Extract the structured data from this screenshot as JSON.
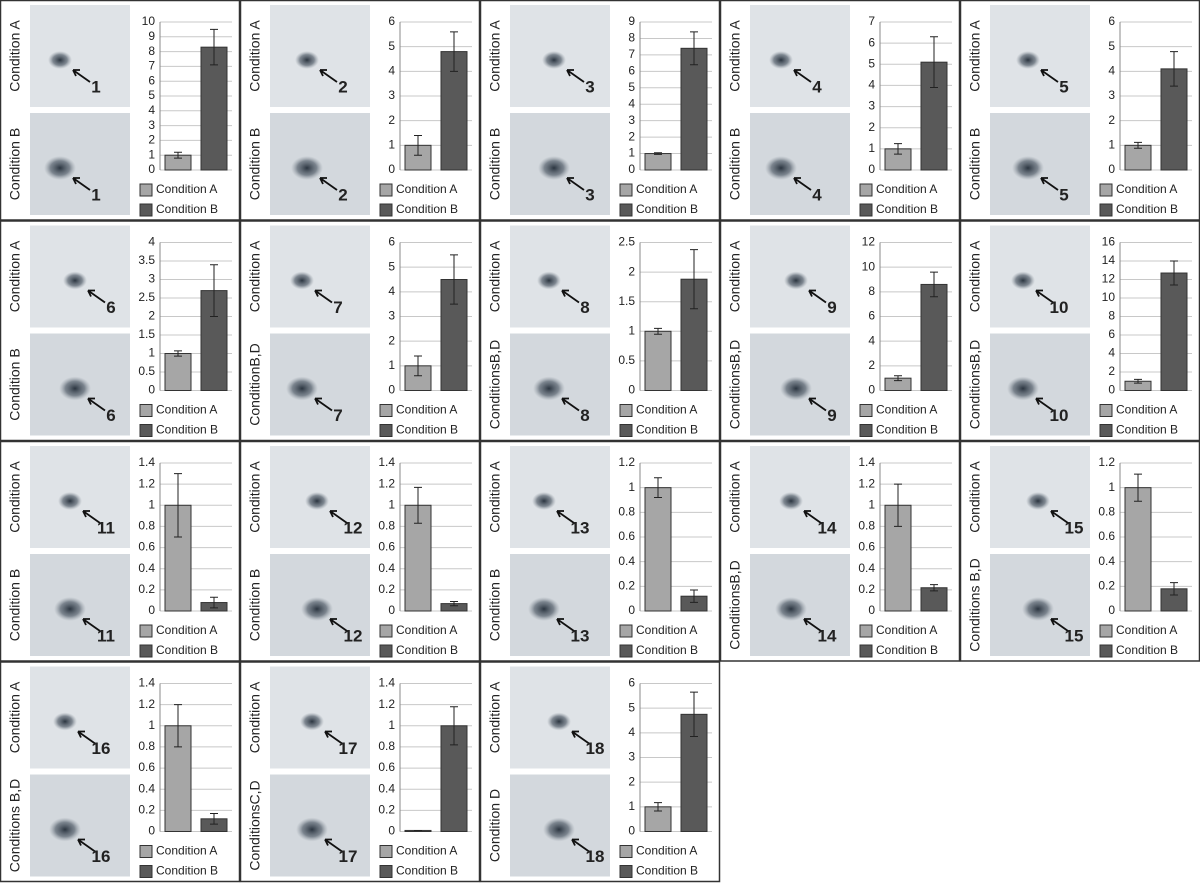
{
  "chart_data": [
    {
      "type": "bar",
      "image_labels": [
        "Condition A",
        "Condition B"
      ],
      "spot": "1",
      "ylim": [
        0,
        10
      ],
      "yticks": [
        0,
        1,
        2,
        3,
        4,
        5,
        6,
        7,
        8,
        9,
        10
      ],
      "grid": true,
      "series": [
        {
          "name": "Condition A",
          "color": "#a6a6a6",
          "values": [
            1
          ],
          "errors": [
            0.2
          ]
        },
        {
          "name": "Condition B",
          "color": "#595959",
          "values": [
            8.3
          ],
          "errors": [
            1.2
          ]
        }
      ]
    },
    {
      "type": "bar",
      "image_labels": [
        "Condition A",
        "Condition B"
      ],
      "spot": "2",
      "ylim": [
        0,
        6
      ],
      "yticks": [
        0,
        1,
        2,
        3,
        4,
        5,
        6
      ],
      "grid": true,
      "series": [
        {
          "name": "Condition A",
          "color": "#a6a6a6",
          "values": [
            1
          ],
          "errors": [
            0.4
          ]
        },
        {
          "name": "Condition B",
          "color": "#595959",
          "values": [
            4.8
          ],
          "errors": [
            0.8
          ]
        }
      ]
    },
    {
      "type": "bar",
      "image_labels": [
        "Condition A",
        "Condition B"
      ],
      "spot": "3",
      "ylim": [
        0,
        9
      ],
      "yticks": [
        0,
        1,
        2,
        3,
        4,
        5,
        6,
        7,
        8,
        9
      ],
      "grid": true,
      "series": [
        {
          "name": "Condition A",
          "color": "#a6a6a6",
          "values": [
            1
          ],
          "errors": [
            0.05
          ]
        },
        {
          "name": "Condition B",
          "color": "#595959",
          "values": [
            7.4
          ],
          "errors": [
            1.0
          ]
        }
      ]
    },
    {
      "type": "bar",
      "image_labels": [
        "Condition A",
        "Condition B"
      ],
      "spot": "4",
      "ylim": [
        0,
        7
      ],
      "yticks": [
        0,
        1,
        2,
        3,
        4,
        5,
        6,
        7
      ],
      "grid": true,
      "series": [
        {
          "name": "Condition A",
          "color": "#a6a6a6",
          "values": [
            1
          ],
          "errors": [
            0.25
          ]
        },
        {
          "name": "Condition B",
          "color": "#595959",
          "values": [
            5.1
          ],
          "errors": [
            1.2
          ]
        }
      ]
    },
    {
      "type": "bar",
      "image_labels": [
        "Condition A",
        "Condition B"
      ],
      "spot": "5",
      "ylim": [
        0,
        6
      ],
      "yticks": [
        0,
        1,
        2,
        3,
        4,
        5,
        6
      ],
      "grid": true,
      "series": [
        {
          "name": "Condition A",
          "color": "#a6a6a6",
          "values": [
            1
          ],
          "errors": [
            0.12
          ]
        },
        {
          "name": "Condition B",
          "color": "#595959",
          "values": [
            4.1
          ],
          "errors": [
            0.7
          ]
        }
      ]
    },
    {
      "type": "bar",
      "image_labels": [
        "Condition A",
        "Condition B"
      ],
      "spot": "6",
      "ylim": [
        0,
        4
      ],
      "yticks": [
        0,
        0.5,
        1,
        1.5,
        2,
        2.5,
        3,
        3.5,
        4
      ],
      "grid": true,
      "series": [
        {
          "name": "Condition A",
          "color": "#a6a6a6",
          "values": [
            1
          ],
          "errors": [
            0.07
          ]
        },
        {
          "name": "Condition B",
          "color": "#595959",
          "values": [
            2.7
          ],
          "errors": [
            0.7
          ]
        }
      ]
    },
    {
      "type": "bar",
      "image_labels": [
        "Condition A",
        "ConditionB,D"
      ],
      "spot": "7",
      "ylim": [
        0,
        6
      ],
      "yticks": [
        0,
        1,
        2,
        3,
        4,
        5,
        6
      ],
      "grid": true,
      "series": [
        {
          "name": "Condition A",
          "color": "#a6a6a6",
          "values": [
            1
          ],
          "errors": [
            0.4
          ]
        },
        {
          "name": "Condition B",
          "color": "#595959",
          "values": [
            4.5
          ],
          "errors": [
            1.0
          ]
        }
      ]
    },
    {
      "type": "bar",
      "image_labels": [
        "Condition A",
        "ConditionsB,D"
      ],
      "spot": "8",
      "ylim": [
        0,
        2.5
      ],
      "yticks": [
        0,
        0.5,
        1,
        1.5,
        2,
        2.5
      ],
      "grid": true,
      "series": [
        {
          "name": "Condition A",
          "color": "#a6a6a6",
          "values": [
            1
          ],
          "errors": [
            0.05
          ]
        },
        {
          "name": "Condition B",
          "color": "#595959",
          "values": [
            1.88
          ],
          "errors": [
            0.5
          ]
        }
      ]
    },
    {
      "type": "bar",
      "image_labels": [
        "Condition A",
        "ConditionsB,D"
      ],
      "spot": "9",
      "ylim": [
        0,
        12
      ],
      "yticks": [
        0,
        2,
        4,
        6,
        8,
        10,
        12
      ],
      "grid": true,
      "series": [
        {
          "name": "Condition A",
          "color": "#a6a6a6",
          "values": [
            1
          ],
          "errors": [
            0.2
          ]
        },
        {
          "name": "Condition B",
          "color": "#595959",
          "values": [
            8.6
          ],
          "errors": [
            1.0
          ]
        }
      ]
    },
    {
      "type": "bar",
      "image_labels": [
        "Condition A",
        "ConditionsB,D"
      ],
      "spot": "10",
      "ylim": [
        0,
        16
      ],
      "yticks": [
        0,
        2,
        4,
        6,
        8,
        10,
        12,
        14,
        16
      ],
      "grid": true,
      "series": [
        {
          "name": "Condition A",
          "color": "#a6a6a6",
          "values": [
            1
          ],
          "errors": [
            0.2
          ]
        },
        {
          "name": "Condition B",
          "color": "#595959",
          "values": [
            12.7
          ],
          "errors": [
            1.3
          ]
        }
      ]
    },
    {
      "type": "bar",
      "image_labels": [
        "Condition A",
        "Condition B"
      ],
      "spot": "11",
      "ylim": [
        0,
        1.4
      ],
      "yticks": [
        0,
        0.2,
        0.4,
        0.6,
        0.8,
        1,
        1.2,
        1.4
      ],
      "grid": true,
      "series": [
        {
          "name": "Condition A",
          "color": "#a6a6a6",
          "values": [
            1
          ],
          "errors": [
            0.3
          ]
        },
        {
          "name": "Condition B",
          "color": "#595959",
          "values": [
            0.08
          ],
          "errors": [
            0.05
          ]
        }
      ]
    },
    {
      "type": "bar",
      "image_labels": [
        "Condition A",
        "Condition B"
      ],
      "spot": "12",
      "ylim": [
        0,
        1.4
      ],
      "yticks": [
        0,
        0.2,
        0.4,
        0.6,
        0.8,
        1,
        1.2,
        1.4
      ],
      "grid": true,
      "series": [
        {
          "name": "Condition A",
          "color": "#a6a6a6",
          "values": [
            1
          ],
          "errors": [
            0.17
          ]
        },
        {
          "name": "Condition B",
          "color": "#595959",
          "values": [
            0.07
          ],
          "errors": [
            0.02
          ]
        }
      ]
    },
    {
      "type": "bar",
      "image_labels": [
        "Condition A",
        "Condition B"
      ],
      "spot": "13",
      "ylim": [
        0,
        1.2
      ],
      "yticks": [
        0,
        0.2,
        0.4,
        0.6,
        0.8,
        1,
        1.2
      ],
      "grid": true,
      "series": [
        {
          "name": "Condition A",
          "color": "#a6a6a6",
          "values": [
            1
          ],
          "errors": [
            0.08
          ]
        },
        {
          "name": "Condition B",
          "color": "#595959",
          "values": [
            0.12
          ],
          "errors": [
            0.05
          ]
        }
      ]
    },
    {
      "type": "bar",
      "image_labels": [
        "Condition A",
        "ConditionsB,D"
      ],
      "spot": "14",
      "ylim": [
        0,
        1.4
      ],
      "yticks": [
        0,
        0.2,
        0.4,
        0.6,
        0.8,
        1,
        1.2,
        1.4
      ],
      "grid": true,
      "series": [
        {
          "name": "Condition A",
          "color": "#a6a6a6",
          "values": [
            1
          ],
          "errors": [
            0.2
          ]
        },
        {
          "name": "Condition B",
          "color": "#595959",
          "values": [
            0.22
          ],
          "errors": [
            0.03
          ]
        }
      ]
    },
    {
      "type": "bar",
      "image_labels": [
        "Condition A",
        "Conditions B,D"
      ],
      "spot": "15",
      "ylim": [
        0,
        1.2
      ],
      "yticks": [
        0,
        0.2,
        0.4,
        0.6,
        0.8,
        1,
        1.2
      ],
      "grid": true,
      "series": [
        {
          "name": "Condition A",
          "color": "#a6a6a6",
          "values": [
            1
          ],
          "errors": [
            0.11
          ]
        },
        {
          "name": "Condition B",
          "color": "#595959",
          "values": [
            0.18
          ],
          "errors": [
            0.05
          ]
        }
      ]
    },
    {
      "type": "bar",
      "image_labels": [
        "Condition A",
        "Conditions B,D"
      ],
      "spot": "16",
      "ylim": [
        0,
        1.4
      ],
      "yticks": [
        0,
        0.2,
        0.4,
        0.6,
        0.8,
        1,
        1.2,
        1.4
      ],
      "grid": true,
      "series": [
        {
          "name": "Condition A",
          "color": "#a6a6a6",
          "values": [
            1
          ],
          "errors": [
            0.2
          ]
        },
        {
          "name": "Condition B",
          "color": "#595959",
          "values": [
            0.12
          ],
          "errors": [
            0.05
          ]
        }
      ]
    },
    {
      "type": "bar",
      "image_labels": [
        "Condition A",
        "ConditionsC,D"
      ],
      "spot": "17",
      "ylim": [
        0,
        1.4
      ],
      "yticks": [
        0,
        0.2,
        0.4,
        0.6,
        0.8,
        1,
        1.2,
        1.4
      ],
      "grid": true,
      "series": [
        {
          "name": "Condition A",
          "color": "#a6a6a6",
          "values": [
            0.01
          ],
          "errors": [
            0
          ]
        },
        {
          "name": "Condition B",
          "color": "#595959",
          "values": [
            1
          ],
          "errors": [
            0.18
          ]
        }
      ]
    },
    {
      "type": "bar",
      "image_labels": [
        "Condition A",
        "Condition D"
      ],
      "spot": "18",
      "ylim": [
        0,
        6
      ],
      "yticks": [
        0,
        1,
        2,
        3,
        4,
        5,
        6
      ],
      "grid": true,
      "series": [
        {
          "name": "Condition A",
          "color": "#a6a6a6",
          "values": [
            1
          ],
          "errors": [
            0.17
          ]
        },
        {
          "name": "Condition B",
          "color": "#595959",
          "values": [
            4.75
          ],
          "errors": [
            0.9
          ]
        }
      ]
    }
  ]
}
